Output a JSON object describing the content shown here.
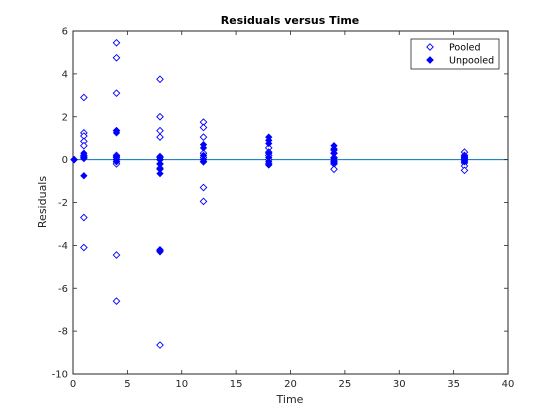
{
  "chart_data": {
    "type": "scatter",
    "title": "Residuals versus Time",
    "xlabel": "Time",
    "ylabel": "Residuals",
    "xlim": [
      0,
      40
    ],
    "ylim": [
      -10,
      6
    ],
    "xticks": [
      0,
      5,
      10,
      15,
      20,
      25,
      30,
      35,
      40
    ],
    "yticks": [
      6,
      4,
      2,
      0,
      -2,
      -4,
      -6,
      -8,
      -10
    ],
    "grid": false,
    "legend_position": "top-right",
    "reference_line": {
      "y": 0,
      "color": "#0072bd"
    },
    "colors": {
      "marker": "#0000ff",
      "axis": "#262626"
    },
    "series": [
      {
        "name": "Pooled",
        "marker": "open-diamond",
        "points": [
          [
            0.1,
            0.0
          ],
          [
            1,
            2.9
          ],
          [
            1,
            1.25
          ],
          [
            1,
            1.1
          ],
          [
            1,
            0.85
          ],
          [
            1,
            0.65
          ],
          [
            1,
            0.2
          ],
          [
            1,
            0.1
          ],
          [
            1,
            -2.7
          ],
          [
            1,
            -4.1
          ],
          [
            4,
            5.45
          ],
          [
            4,
            4.75
          ],
          [
            4,
            3.1
          ],
          [
            4,
            1.35
          ],
          [
            4,
            0.2
          ],
          [
            4,
            0.1
          ],
          [
            4,
            0.0
          ],
          [
            4,
            -0.1
          ],
          [
            4,
            -0.2
          ],
          [
            4,
            -4.45
          ],
          [
            4,
            -6.6
          ],
          [
            8,
            3.75
          ],
          [
            8,
            2.0
          ],
          [
            8,
            1.35
          ],
          [
            8,
            1.05
          ],
          [
            8,
            0.1
          ],
          [
            8,
            0.0
          ],
          [
            8,
            -0.2
          ],
          [
            8,
            -0.4
          ],
          [
            8,
            -4.25
          ],
          [
            8,
            -8.65
          ],
          [
            12,
            1.75
          ],
          [
            12,
            1.5
          ],
          [
            12,
            1.05
          ],
          [
            12,
            0.3
          ],
          [
            12,
            0.1
          ],
          [
            12,
            -0.1
          ],
          [
            12,
            -1.3
          ],
          [
            12,
            -1.95
          ],
          [
            18,
            0.55
          ],
          [
            18,
            0.35
          ],
          [
            18,
            0.2
          ],
          [
            18,
            0.0
          ],
          [
            18,
            -0.2
          ],
          [
            24,
            0.45
          ],
          [
            24,
            0.3
          ],
          [
            24,
            0.1
          ],
          [
            24,
            -0.1
          ],
          [
            24,
            -0.2
          ],
          [
            24,
            -0.45
          ],
          [
            36,
            0.35
          ],
          [
            36,
            0.2
          ],
          [
            36,
            0.1
          ],
          [
            36,
            0.0
          ],
          [
            36,
            -0.15
          ],
          [
            36,
            -0.3
          ],
          [
            36,
            -0.5
          ]
        ]
      },
      {
        "name": "Unpooled",
        "marker": "filled-diamond",
        "points": [
          [
            0.1,
            0.0
          ],
          [
            1,
            0.3
          ],
          [
            1,
            0.15
          ],
          [
            1,
            0.05
          ],
          [
            1,
            -0.75
          ],
          [
            4,
            1.35
          ],
          [
            4,
            1.25
          ],
          [
            4,
            0.15
          ],
          [
            4,
            0.0
          ],
          [
            4,
            -0.1
          ],
          [
            8,
            0.15
          ],
          [
            8,
            0.0
          ],
          [
            8,
            -0.2
          ],
          [
            8,
            -0.45
          ],
          [
            8,
            -0.65
          ],
          [
            8,
            -4.2
          ],
          [
            8,
            -4.3
          ],
          [
            12,
            0.7
          ],
          [
            12,
            0.55
          ],
          [
            12,
            0.2
          ],
          [
            12,
            0.0
          ],
          [
            12,
            -0.1
          ],
          [
            18,
            1.05
          ],
          [
            18,
            0.9
          ],
          [
            18,
            0.75
          ],
          [
            18,
            0.3
          ],
          [
            18,
            0.1
          ],
          [
            18,
            -0.1
          ],
          [
            18,
            -0.25
          ],
          [
            24,
            0.65
          ],
          [
            24,
            0.5
          ],
          [
            24,
            0.3
          ],
          [
            24,
            0.05
          ],
          [
            24,
            -0.05
          ],
          [
            24,
            -0.15
          ],
          [
            36,
            0.15
          ],
          [
            36,
            0.05
          ],
          [
            36,
            -0.05
          ],
          [
            36,
            -0.1
          ]
        ]
      }
    ]
  }
}
